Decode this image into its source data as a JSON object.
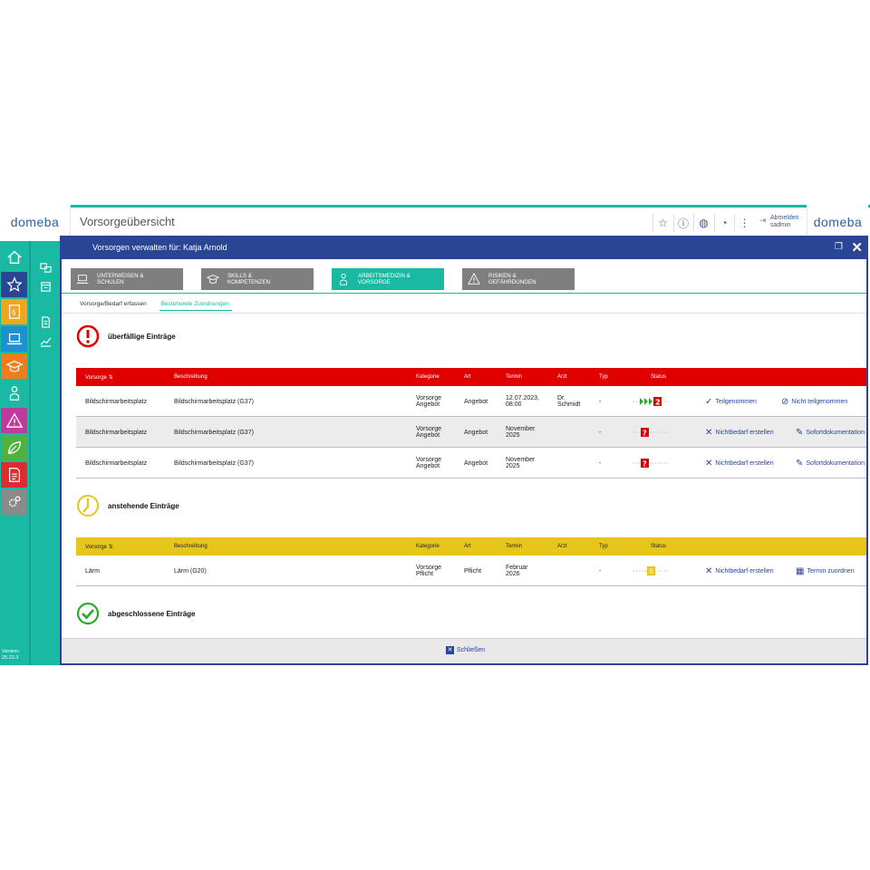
{
  "app": {
    "logo_left": "domeba",
    "logo_right": "domeba",
    "page_title": "Vorsorgeübersicht",
    "logout_label": "Abmelden",
    "user": "sadmin",
    "version_label": "Version:",
    "version": "25.22.3"
  },
  "colors": {
    "teal": "#19b9a3",
    "navy": "#2a4594",
    "red": "#e00000",
    "yellow": "#e8c51a",
    "green": "#2cab2c"
  },
  "sidebar": {
    "items": [
      {
        "icon": "home-icon",
        "color": "#1dafa0"
      },
      {
        "icon": "star-icon",
        "color": "#2a4594"
      },
      {
        "icon": "law-book-icon",
        "color": "#f2a51c"
      },
      {
        "icon": "laptop-icon",
        "color": "#1d90cf"
      },
      {
        "icon": "graduation-cap-icon",
        "color": "#f07c1a"
      },
      {
        "icon": "doctor-icon",
        "color": "#19b9a3"
      },
      {
        "icon": "warning-icon",
        "color": "#c2399b"
      },
      {
        "icon": "leaf-icon",
        "color": "#4fb23d"
      },
      {
        "icon": "document-icon",
        "color": "#e02a30"
      },
      {
        "icon": "gears-icon",
        "color": "#8a8a8a"
      }
    ]
  },
  "subnav": {
    "items": [
      "overview-icon",
      "calendar-icon",
      "document-icon",
      "chart-icon"
    ]
  },
  "modal": {
    "title": "Vorsorgen verwalten für: Katja Arnold",
    "close_label": "Schließen"
  },
  "categories": [
    {
      "label": "UNTERWEISEN & SCHULEN",
      "icon": "laptop-icon",
      "active": false
    },
    {
      "label": "SKILLS & KOMPETENZEN",
      "icon": "graduation-cap-icon",
      "active": false
    },
    {
      "label": "ARBEITSMEDIZIN & VORSORGE",
      "icon": "doctor-icon",
      "active": true
    },
    {
      "label": "RISIKEN & GEFÄHRDUNGEN",
      "icon": "warning-icon",
      "active": false
    }
  ],
  "tabs": [
    {
      "label": "Vorsorge/Bedarf erfassen",
      "active": false
    },
    {
      "label": "Bestehende Zuordnungen",
      "active": true
    }
  ],
  "columns": {
    "vorsorge": "Vorsorge",
    "beschreibung": "Beschreibung",
    "kategorie": "Kategorie",
    "art": "Art",
    "termin": "Termin",
    "arzt": "Arzt",
    "typ": "Typ",
    "status": "Status"
  },
  "sections": {
    "overdue": {
      "title": "überfällige Einträge",
      "rows": [
        {
          "vorsorge": "Bildschirmarbeitsplatz",
          "beschreibung": "Bildschirmarbeitsplatz (G37)",
          "kategorie": [
            "Vorsorge",
            "Angebot"
          ],
          "art": "Angebot",
          "termin": [
            "12.07.2023,",
            "08:00"
          ],
          "arzt": [
            "Dr.",
            "Schmidt"
          ],
          "typ": "-",
          "status": "overdue-attended",
          "action1": "Teilgenommen",
          "action1_icon": "checkmark-icon",
          "action2": "Nicht teilgenommen",
          "action2_icon": "not-attended-icon"
        },
        {
          "vorsorge": "Bildschirmarbeitsplatz",
          "beschreibung": "Bildschirmarbeitsplatz (G37)",
          "kategorie": [
            "Vorsorge",
            "Angebot"
          ],
          "art": "Angebot",
          "termin": [
            "November",
            "2025"
          ],
          "arzt": [
            "",
            ""
          ],
          "typ": "-",
          "status": "overdue-open",
          "action1": "Nichtbedarf erstellen",
          "action1_icon": "x-icon",
          "action2": "Sofortdokumentation",
          "action2_icon": "edit-icon"
        },
        {
          "vorsorge": "Bildschirmarbeitsplatz",
          "beschreibung": "Bildschirmarbeitsplatz (G37)",
          "kategorie": [
            "Vorsorge",
            "Angebot"
          ],
          "art": "Angebot",
          "termin": [
            "November",
            "2025"
          ],
          "arzt": [
            "",
            ""
          ],
          "typ": "-",
          "status": "overdue-open",
          "action1": "Nichtbedarf erstellen",
          "action1_icon": "x-icon",
          "action2": "Sofortdokumentation",
          "action2_icon": "edit-icon"
        }
      ]
    },
    "pending": {
      "title": "anstehende Einträge",
      "rows": [
        {
          "vorsorge": "Lärm",
          "beschreibung": "Lärm (G20)",
          "kategorie": [
            "Vorsorge",
            "Pflicht"
          ],
          "art": "Pflicht",
          "termin": [
            "Februar",
            "2026"
          ],
          "arzt": [
            "",
            ""
          ],
          "typ": "-",
          "status": "pending",
          "action1": "Nichtbedarf erstellen",
          "action1_icon": "x-icon",
          "action2": "Termin zuordnen",
          "action2_icon": "calendar-icon"
        }
      ]
    },
    "done": {
      "title": "abgeschlossene Einträge"
    }
  }
}
